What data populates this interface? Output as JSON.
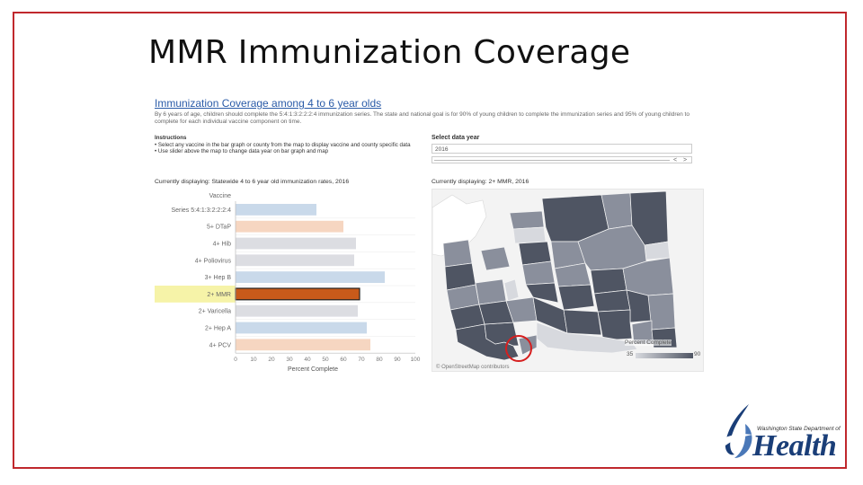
{
  "slide": {
    "title": "MMR Immunization Coverage"
  },
  "dashboard": {
    "title": "Immunization Coverage among 4 to 6 year olds",
    "description": "By 6 years of age, children should complete the 5:4:1:3:2:2:2:4 immunization series. The state and national goal is for 90% of young children to complete the immunization series and 95% of young children to complete for each individual vaccine component on time.",
    "instructions_heading": "Instructions",
    "instructions": [
      "Select any vaccine in the bar graph or county from the map to display vaccine and county specific data",
      "Use slider above the map to change data year on bar graph and map"
    ],
    "current_left": "Currently displaying: Statewide 4 to 6 year old immunization rates, 2016",
    "current_right": "Currently displaying: 2+ MMR, 2016",
    "select_label": "Select data year",
    "year_value": "2016",
    "slider_prev": "<",
    "slider_next": ">",
    "map_credit": "© OpenStreetMap contributors",
    "legend_title": "Percent Complete",
    "legend_min": "35",
    "legend_max": "90",
    "map_colors": {
      "light": "#d7d9de",
      "mid": "#8a8f9c",
      "dark": "#4f5563"
    }
  },
  "chart_data": {
    "type": "bar",
    "orientation": "horizontal",
    "categories": [
      "Series 5:4:1:3:2:2:2:4",
      "5+ DTaP",
      "4+ Hib",
      "4+ Poliovirus",
      "3+ Hep B",
      "2+ MMR",
      "2+ Varicella",
      "2+ Hep A",
      "4+ PCV"
    ],
    "values": [
      45,
      60,
      67,
      66,
      83,
      69,
      68,
      73,
      75
    ],
    "colors": [
      "#c9d9ea",
      "#f6d6c1",
      "#dcdde2",
      "#dcdde2",
      "#c9d9ea",
      "#c85a1a",
      "#dcdde2",
      "#c9d9ea",
      "#f6d6c1"
    ],
    "highlighted": "2+ MMR",
    "highlight_color": "#f6f3a8",
    "category_header": "Vaccine",
    "xlabel": "Percent Complete",
    "xlim": [
      0,
      100
    ],
    "xticks": [
      0,
      10,
      20,
      30,
      40,
      50,
      60,
      70,
      80,
      90,
      100
    ]
  },
  "logo": {
    "agency_line": "Washington State Department of",
    "word": "Health"
  }
}
